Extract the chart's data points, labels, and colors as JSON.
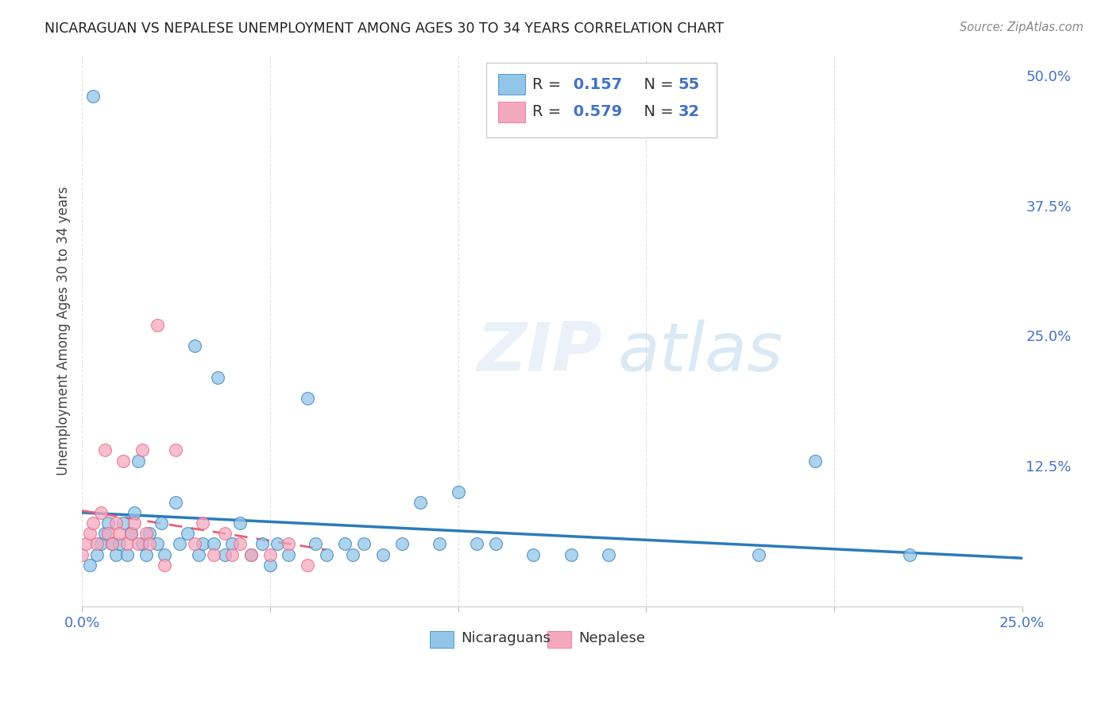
{
  "title": "NICARAGUAN VS NEPALESE UNEMPLOYMENT AMONG AGES 30 TO 34 YEARS CORRELATION CHART",
  "source": "Source: ZipAtlas.com",
  "ylabel": "Unemployment Among Ages 30 to 34 years",
  "xlim": [
    0.0,
    0.25
  ],
  "ylim": [
    -0.01,
    0.52
  ],
  "xticks": [
    0.0,
    0.05,
    0.1,
    0.15,
    0.2,
    0.25
  ],
  "xticklabels": [
    "0.0%",
    "",
    "",
    "",
    "",
    "25.0%"
  ],
  "yticks_right": [
    0.0,
    0.125,
    0.25,
    0.375,
    0.5
  ],
  "ytick_right_labels": [
    "",
    "12.5%",
    "25.0%",
    "37.5%",
    "50.0%"
  ],
  "blue_color": "#92c5e8",
  "pink_color": "#f4a8c0",
  "blue_line_color": "#2b7bba",
  "pink_line_color": "#e8607a",
  "watermark_zip": "ZIP",
  "watermark_atlas": "atlas",
  "nicaraguan_x": [
    0.002,
    0.003,
    0.004,
    0.005,
    0.006,
    0.007,
    0.008,
    0.009,
    0.01,
    0.011,
    0.012,
    0.013,
    0.014,
    0.015,
    0.016,
    0.017,
    0.018,
    0.02,
    0.021,
    0.022,
    0.025,
    0.026,
    0.028,
    0.03,
    0.031,
    0.032,
    0.035,
    0.036,
    0.038,
    0.04,
    0.042,
    0.045,
    0.048,
    0.05,
    0.052,
    0.055,
    0.06,
    0.062,
    0.065,
    0.07,
    0.072,
    0.075,
    0.08,
    0.085,
    0.09,
    0.095,
    0.1,
    0.105,
    0.11,
    0.12,
    0.13,
    0.14,
    0.18,
    0.195,
    0.22
  ],
  "nicaraguan_y": [
    0.03,
    0.48,
    0.04,
    0.05,
    0.06,
    0.07,
    0.05,
    0.04,
    0.05,
    0.07,
    0.04,
    0.06,
    0.08,
    0.13,
    0.05,
    0.04,
    0.06,
    0.05,
    0.07,
    0.04,
    0.09,
    0.05,
    0.06,
    0.24,
    0.04,
    0.05,
    0.05,
    0.21,
    0.04,
    0.05,
    0.07,
    0.04,
    0.05,
    0.03,
    0.05,
    0.04,
    0.19,
    0.05,
    0.04,
    0.05,
    0.04,
    0.05,
    0.04,
    0.05,
    0.09,
    0.05,
    0.1,
    0.05,
    0.05,
    0.04,
    0.04,
    0.04,
    0.04,
    0.13,
    0.04
  ],
  "nepalese_x": [
    0.0,
    0.001,
    0.002,
    0.003,
    0.004,
    0.005,
    0.006,
    0.007,
    0.008,
    0.009,
    0.01,
    0.011,
    0.012,
    0.013,
    0.014,
    0.015,
    0.016,
    0.017,
    0.018,
    0.02,
    0.022,
    0.025,
    0.03,
    0.032,
    0.035,
    0.038,
    0.04,
    0.042,
    0.045,
    0.05,
    0.055,
    0.06
  ],
  "nepalese_y": [
    0.04,
    0.05,
    0.06,
    0.07,
    0.05,
    0.08,
    0.14,
    0.06,
    0.05,
    0.07,
    0.06,
    0.13,
    0.05,
    0.06,
    0.07,
    0.05,
    0.14,
    0.06,
    0.05,
    0.26,
    0.03,
    0.14,
    0.05,
    0.07,
    0.04,
    0.06,
    0.04,
    0.05,
    0.04,
    0.04,
    0.05,
    0.03
  ]
}
